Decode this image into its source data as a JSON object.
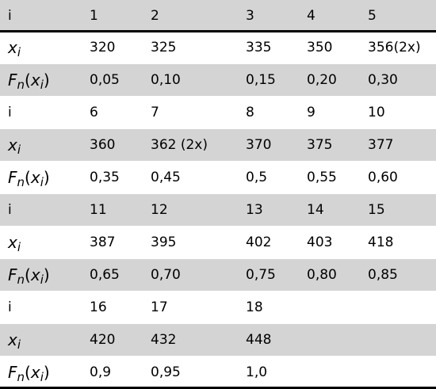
{
  "labels": {
    "index": "i",
    "x_letter": "x",
    "x_sub": "i",
    "f_letter": "F",
    "f_sub": "n",
    "f_open": "(",
    "f_arg_letter": "x",
    "f_arg_sub": "i",
    "f_close": ")"
  },
  "blocks": [
    {
      "index": [
        "1",
        "2",
        "3",
        "4",
        "5"
      ],
      "x": [
        "320",
        "325",
        "335",
        "350",
        "356(2x)"
      ],
      "f": [
        "0,05",
        "0,10",
        "0,15",
        "0,20",
        "0,30"
      ]
    },
    {
      "index": [
        "6",
        "7",
        "8",
        "9",
        "10"
      ],
      "x": [
        "360",
        "362 (2x)",
        "370",
        "375",
        "377"
      ],
      "f": [
        "0,35",
        "0,45",
        "0,5",
        "0,55",
        "0,60"
      ]
    },
    {
      "index": [
        "11",
        "12",
        "13",
        "14",
        "15"
      ],
      "x": [
        "387",
        "395",
        "402",
        "403",
        "418"
      ],
      "f": [
        "0,65",
        "0,70",
        "0,75",
        "0,80",
        "0,85"
      ]
    },
    {
      "index": [
        "16",
        "17",
        "18",
        "",
        ""
      ],
      "x": [
        "420",
        "432",
        "448",
        "",
        ""
      ],
      "f": [
        "0,9",
        "0,95",
        "1,0",
        "",
        ""
      ]
    }
  ]
}
